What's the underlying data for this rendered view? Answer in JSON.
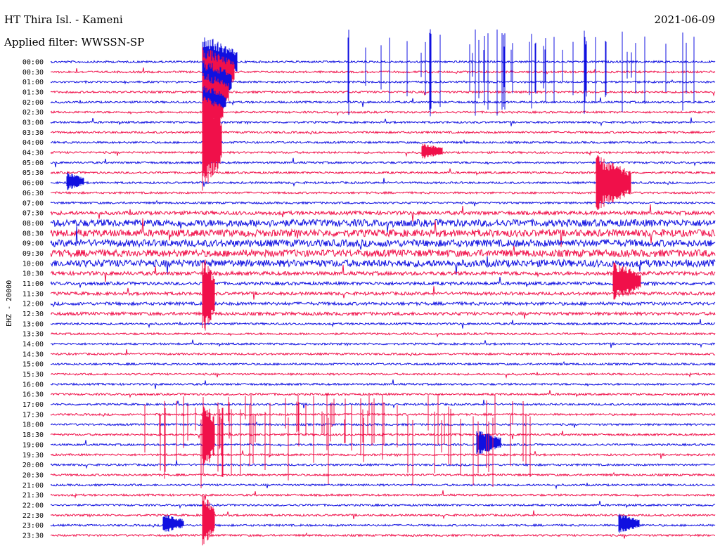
{
  "header": {
    "station": "HT Thira Isl. - Kameni",
    "filter": "Applied filter: WWSSN-SP",
    "date": "2021-06-09"
  },
  "chart_data": {
    "type": "line",
    "ylabel": "EHZ - 20000",
    "rows": [
      "00:00",
      "00:30",
      "01:00",
      "01:30",
      "02:00",
      "02:30",
      "03:00",
      "03:30",
      "04:00",
      "04:30",
      "05:00",
      "05:30",
      "06:00",
      "06:30",
      "07:00",
      "07:30",
      "08:00",
      "08:30",
      "09:00",
      "09:30",
      "10:00",
      "10:30",
      "11:00",
      "11:30",
      "12:00",
      "12:30",
      "13:00",
      "13:30",
      "14:00",
      "14:30",
      "15:00",
      "15:30",
      "16:00",
      "16:30",
      "17:00",
      "17:30",
      "18:00",
      "18:30",
      "19:00",
      "19:30",
      "20:00",
      "20:30",
      "21:00",
      "21:30",
      "22:00",
      "22:30",
      "23:00",
      "23:30"
    ],
    "colors": [
      "#1010e0",
      "#f0104a"
    ],
    "x_range_minutes": [
      0,
      30
    ]
  }
}
